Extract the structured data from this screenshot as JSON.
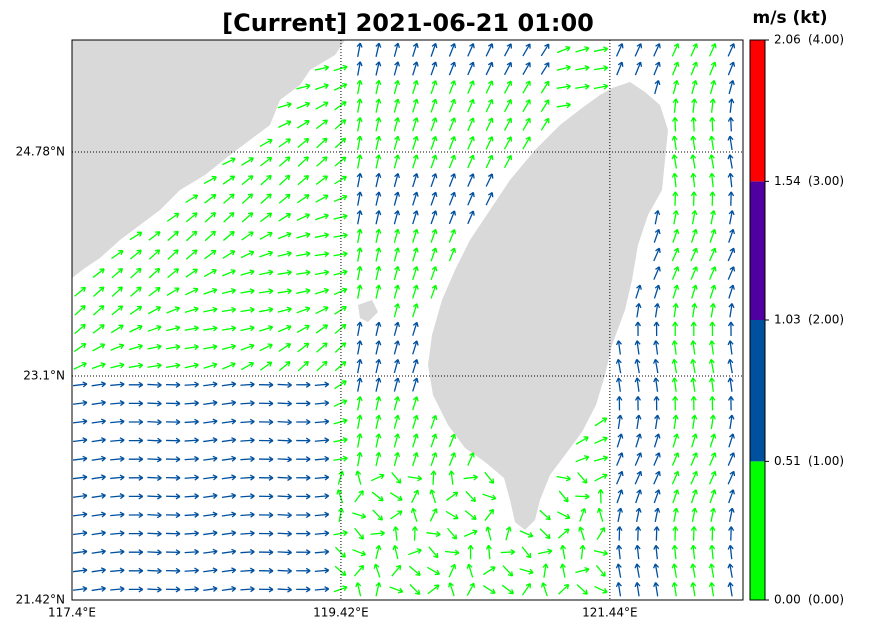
{
  "chart_data": {
    "type": "vector-map",
    "title": "[Current] 2021-06-21 01:00",
    "xlim": [
      117.4,
      122.44
    ],
    "ylim": [
      21.42,
      25.62
    ],
    "xticks": [
      {
        "value": 117.4,
        "label": "117.4°E"
      },
      {
        "value": 119.42,
        "label": "119.42°E"
      },
      {
        "value": 121.44,
        "label": "121.44°E"
      }
    ],
    "yticks": [
      {
        "value": 21.42,
        "label": "21.42°N"
      },
      {
        "value": 23.1,
        "label": "23.1°N"
      },
      {
        "value": 24.78,
        "label": "24.78°N"
      }
    ],
    "grid": true,
    "colorbar": {
      "title": "m/s (kt)",
      "levels": [
        {
          "value": 0,
          "label": "0.00"
        },
        {
          "value": 0.51,
          "label": "0.51"
        },
        {
          "value": 1.03,
          "label": "1.03"
        },
        {
          "value": 1.54,
          "label": "1.54"
        },
        {
          "value": 2.06,
          "label": "2.06"
        }
      ],
      "knot_labels": [
        "(0.00)",
        "(1.00)",
        "(2.00)",
        "(3.00)",
        "(4.00)"
      ],
      "colors": [
        "#00ff00",
        "#0050a0",
        "#5000a0",
        "#ff0000"
      ]
    }
  }
}
